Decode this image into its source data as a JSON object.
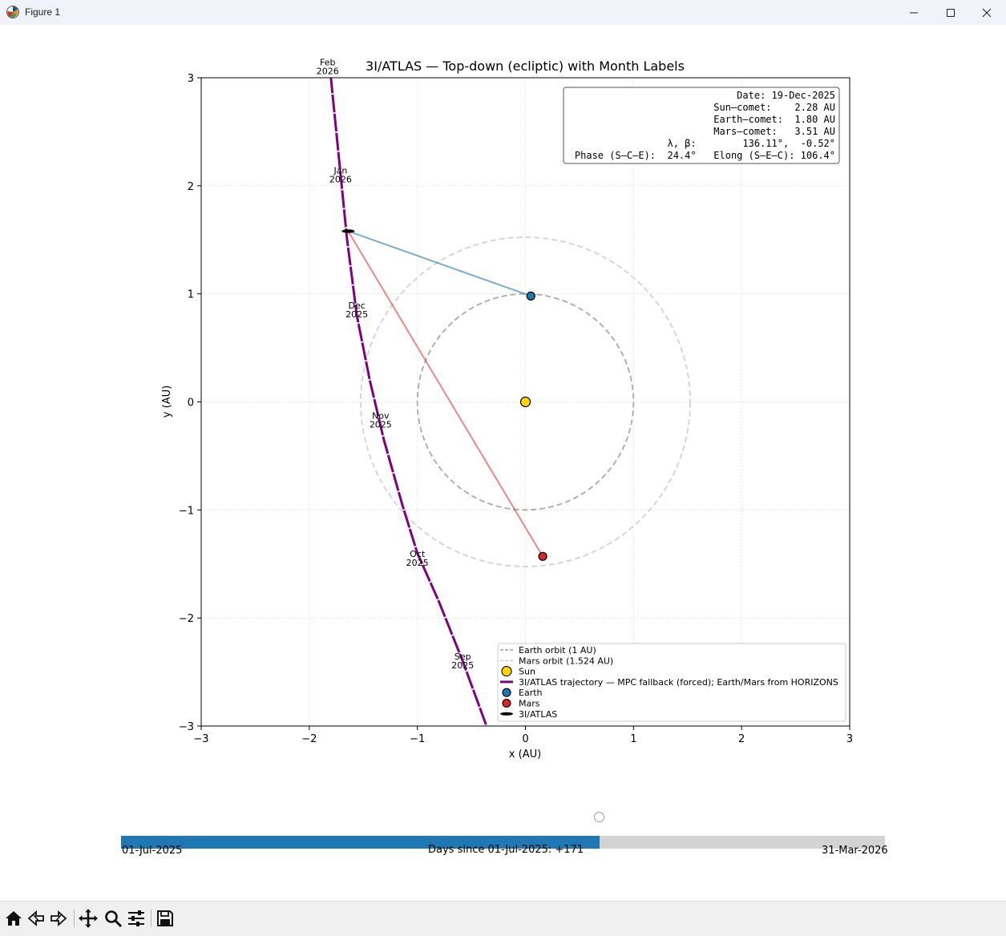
{
  "window": {
    "title": "Figure 1",
    "app_icon": "matplotlib-icon",
    "controls": [
      "minimize-icon",
      "maximize-icon",
      "close-icon"
    ]
  },
  "chart_data": {
    "type": "line",
    "title": "3I/ATLAS — Top-down (ecliptic) with Month Labels",
    "xlabel": "x (AU)",
    "ylabel": "y (AU)",
    "xlim": [
      -3,
      3
    ],
    "ylim": [
      -3,
      3
    ],
    "xticks": [
      -3,
      -2,
      -1,
      0,
      1,
      2,
      3
    ],
    "yticks": [
      -3,
      -2,
      -1,
      0,
      1,
      2,
      3
    ],
    "xtick_labels": [
      "−3",
      "−2",
      "−1",
      "0",
      "1",
      "2",
      "3"
    ],
    "ytick_labels": [
      "−3",
      "−2",
      "−1",
      "0",
      "1",
      "2",
      "3"
    ],
    "grid": true,
    "equal_aspect": true,
    "legend_position": "lower-right",
    "orbits": [
      {
        "name": "Earth orbit (1 AU)",
        "radius": 1.0,
        "color": "#aaaaaa",
        "style": "dashed"
      },
      {
        "name": "Mars orbit (1.524 AU)",
        "radius": 1.524,
        "color": "#d3d3d3",
        "style": "dashed"
      }
    ],
    "sun": {
      "name": "Sun",
      "x": 0,
      "y": 0,
      "color": "#ffd700"
    },
    "trajectory": {
      "name": "3I/ATLAS trajectory — MPC fallback (forced); Earth/Mars from HORIZONS",
      "color": "#800080",
      "x": [
        -0.36,
        -0.58,
        -0.8,
        -1.0,
        -1.14,
        -1.31,
        -1.44,
        -1.56,
        -1.65,
        -1.73,
        -1.8
      ],
      "y": [
        -3.0,
        -2.4,
        -1.85,
        -1.4,
        -0.95,
        -0.35,
        0.2,
        0.8,
        1.5,
        2.3,
        3.0
      ]
    },
    "month_labels": [
      {
        "text": "Sep\n2025",
        "x": -0.58,
        "y": -2.4
      },
      {
        "text": "Oct\n2025",
        "x": -1.0,
        "y": -1.45
      },
      {
        "text": "Nov\n2025",
        "x": -1.34,
        "y": -0.17
      },
      {
        "text": "Dec\n2025",
        "x": -1.56,
        "y": 0.85
      },
      {
        "text": "Jan\n2026",
        "x": -1.71,
        "y": 2.1
      },
      {
        "text": "Feb\n2026",
        "x": -1.83,
        "y": 3.1
      }
    ],
    "earth": {
      "name": "Earth",
      "x": 0.05,
      "y": 0.98,
      "color": "#1f77b4"
    },
    "mars": {
      "name": "Mars",
      "x": 0.16,
      "y": -1.43,
      "color": "#d62728"
    },
    "comet": {
      "name": "3I/ATLAS",
      "x": -1.64,
      "y": 1.58,
      "color": "#000000"
    },
    "info_box": {
      "lines": [
        "Date: 19-Dec-2025",
        "Sun–comet:    2.28 AU",
        "Earth–comet:  1.80 AU",
        "Mars–comet:   3.51 AU",
        "λ, β:        136.11°,  -0.52°",
        "Phase (S–C–E):  24.4°   Elong (S–E–C): 106.4°"
      ]
    }
  },
  "slider": {
    "start_label": "01-Jul-2025",
    "end_label": "31-Mar-2026",
    "value_label": "Days since 01-Jul-2025: +171",
    "value": 171,
    "min": 0,
    "max": 273
  },
  "toolbar": {
    "items": [
      "home-icon",
      "back-icon",
      "forward-icon",
      "pan-icon",
      "zoom-icon",
      "configure-icon",
      "save-icon"
    ]
  }
}
